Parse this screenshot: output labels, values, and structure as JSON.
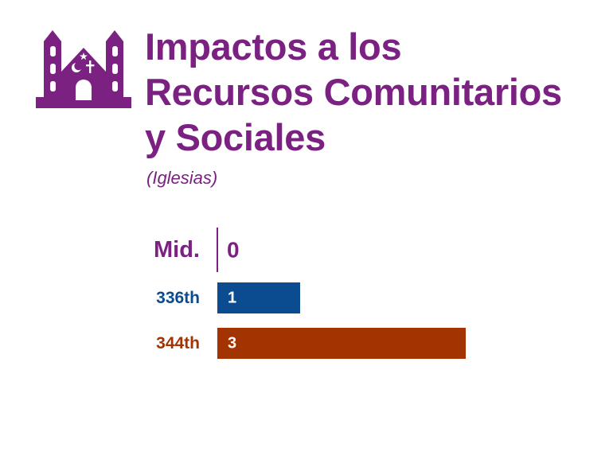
{
  "header": {
    "title_lines": [
      "Impactos a los",
      "Recursos Comunitarios",
      "y Sociales"
    ],
    "subtitle": "(Iglesias)"
  },
  "icon": {
    "name": "place-of-worship-icon",
    "color": "#7a2182"
  },
  "colors": {
    "accent": "#7a2182",
    "series_336th": "#0b4c91",
    "series_344th": "#a33300"
  },
  "chart_data": {
    "type": "bar",
    "orientation": "horizontal",
    "categories": [
      "Mid.",
      "336th",
      "344th"
    ],
    "values": [
      0,
      1,
      3
    ],
    "bar_colors": [
      "#7a2182",
      "#0b4c91",
      "#a33300"
    ],
    "value_labels": [
      "0",
      "1",
      "3"
    ],
    "title": "",
    "xlabel": "",
    "ylabel": "",
    "xlim": [
      0,
      3
    ]
  }
}
